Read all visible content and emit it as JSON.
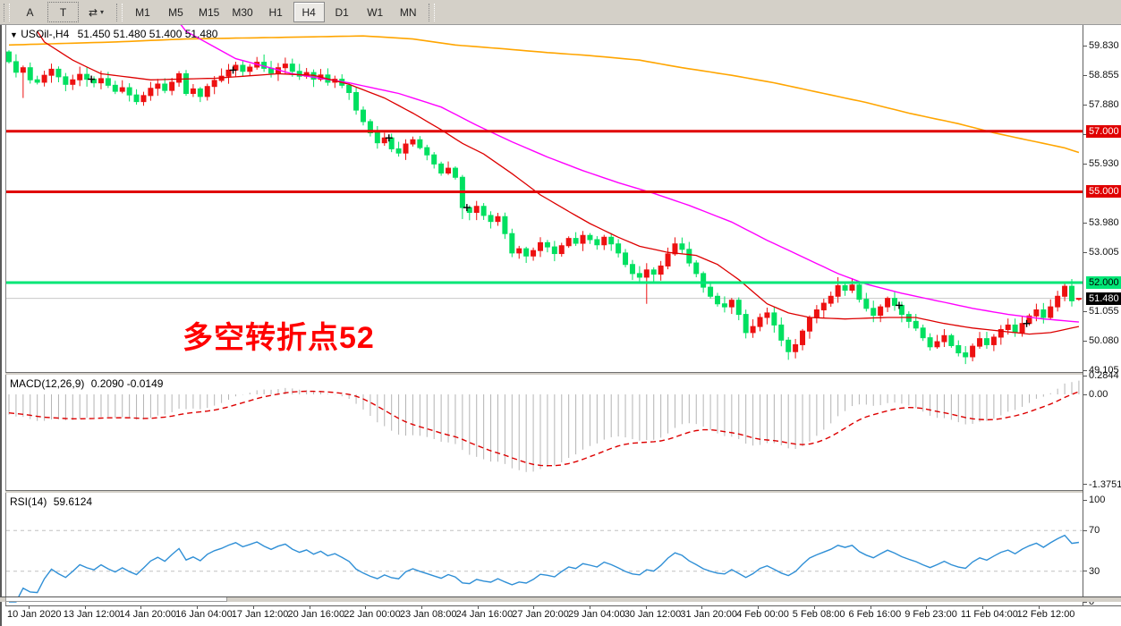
{
  "toolbar": {
    "buttons": [
      {
        "label": "A",
        "name": "annotate-text-button"
      },
      {
        "label": "T",
        "name": "text-label-button",
        "boxed": true
      }
    ],
    "pointer_icon": "⇄",
    "pointer_caret": "▾",
    "timeframes": [
      "M1",
      "M5",
      "M15",
      "M30",
      "H1",
      "H4",
      "D1",
      "W1",
      "MN"
    ],
    "active_timeframe": "H4"
  },
  "chart": {
    "dropdown_glyph": "▼",
    "symbol_title": "USOil-,H4",
    "ohlc_text": "51.450 51.480 51.400 51.480",
    "annotation": {
      "text": "多空转折点52",
      "color": "#FF0000"
    },
    "colors": {
      "up_candle": "#ED1111",
      "down_candle": "#00E060",
      "ma_fast": "#DD0000",
      "ma_mid": "#FF00FF",
      "ma_slow": "#FFA500",
      "level_red": "#E00000",
      "level_green": "#00E676",
      "current_price_line": "#C8C8C8",
      "macd_histogram": "#B4B4B4",
      "macd_signal": "#DD0000",
      "rsi_line": "#2F8FD6"
    },
    "hlines": [
      {
        "price": 57.0,
        "color": "#E00000",
        "width": 3
      },
      {
        "price": 55.0,
        "color": "#E00000",
        "width": 3
      },
      {
        "price": 52.0,
        "color": "#00E676",
        "width": 3
      },
      {
        "price": 51.48,
        "color": "#C8C8C8",
        "width": 1
      }
    ],
    "price_axis": {
      "ticks": [
        59.83,
        58.855,
        57.88,
        56.905,
        55.93,
        53.98,
        53.005,
        51.055,
        50.08,
        49.105
      ],
      "badges": [
        {
          "label": "57.000",
          "price": 57.0,
          "bg": "#E00000",
          "fg": "#FFFFFF"
        },
        {
          "label": "55.000",
          "price": 55.0,
          "bg": "#E00000",
          "fg": "#FFFFFF"
        },
        {
          "label": "52.000",
          "price": 52.0,
          "bg": "#00E676",
          "fg": "#000000"
        },
        {
          "label": "51.480",
          "price": 51.48,
          "bg": "#000000",
          "fg": "#FFFFFF"
        }
      ]
    }
  },
  "chart_data": {
    "type": "candlestick",
    "symbol": "USOil-",
    "timeframe": "H4",
    "title": "USOil-,H4 51.450 51.480 51.400 51.480",
    "x_labels": [
      "10 Jan 2020",
      "13 Jan 12:00",
      "14 Jan 20:00",
      "16 Jan 04:00",
      "17 Jan 12:00",
      "20 Jan 16:00",
      "22 Jan 00:00",
      "23 Jan 08:00",
      "24 Jan 16:00",
      "27 Jan 20:00",
      "29 Jan 04:00",
      "30 Jan 12:00",
      "31 Jan 20:00",
      "4 Feb 00:00",
      "5 Feb 08:00",
      "6 Feb 16:00",
      "9 Feb 23:00",
      "11 Feb 04:00",
      "12 Feb 12:00"
    ],
    "price_range_shown": [
      49.105,
      59.83
    ],
    "closes": [
      59.3,
      58.95,
      59.1,
      58.7,
      58.62,
      58.85,
      59.05,
      58.8,
      58.55,
      58.7,
      58.88,
      58.72,
      58.6,
      58.74,
      58.52,
      58.32,
      58.44,
      58.2,
      57.98,
      58.18,
      58.42,
      58.56,
      58.35,
      58.62,
      58.9,
      58.25,
      58.4,
      58.15,
      58.48,
      58.68,
      58.82,
      59.02,
      59.18,
      58.98,
      59.12,
      59.28,
      59.08,
      58.92,
      59.1,
      59.22,
      58.98,
      58.82,
      58.94,
      58.72,
      58.86,
      58.62,
      58.72,
      58.52,
      58.28,
      57.7,
      57.32,
      56.95,
      56.62,
      56.78,
      56.42,
      56.28,
      56.58,
      56.72,
      56.46,
      56.22,
      55.92,
      55.62,
      55.78,
      55.48,
      54.48,
      54.32,
      54.52,
      54.22,
      54.02,
      54.18,
      53.62,
      52.98,
      53.12,
      52.88,
      53.06,
      53.32,
      53.18,
      52.96,
      53.22,
      53.46,
      53.3,
      53.56,
      53.42,
      53.25,
      53.5,
      53.28,
      52.98,
      52.6,
      52.3,
      52.18,
      52.42,
      52.28,
      52.55,
      52.95,
      53.28,
      53.1,
      52.65,
      52.3,
      51.85,
      51.55,
      51.3,
      51.2,
      51.42,
      50.95,
      50.35,
      50.55,
      50.85,
      51.0,
      50.6,
      50.1,
      49.72,
      49.95,
      50.4,
      50.85,
      51.1,
      51.32,
      51.55,
      51.9,
      51.75,
      51.92,
      51.45,
      51.15,
      50.92,
      51.2,
      51.48,
      51.25,
      50.95,
      50.72,
      50.5,
      50.18,
      49.88,
      50.05,
      50.25,
      49.92,
      49.68,
      49.55,
      49.9,
      50.15,
      49.95,
      50.2,
      50.45,
      50.6,
      50.35,
      50.65,
      50.9,
      51.1,
      50.85,
      51.2,
      51.55,
      51.88,
      51.4,
      51.48
    ],
    "first_open": 59.62,
    "last_candle": {
      "o": 51.45,
      "h": 51.48,
      "l": 51.4,
      "c": 51.48
    },
    "doji_marks": [
      11,
      31,
      53,
      64,
      125,
      143
    ],
    "wick_overrides": {
      "2": {
        "l": 58.1
      },
      "49": {
        "h": 58.45
      },
      "64": {
        "l": 54.1
      },
      "90": {
        "l": 51.3
      },
      "110": {
        "l": 49.45
      },
      "117": {
        "h": 52.18
      },
      "119": {
        "h": 52.15
      },
      "136": {
        "l": 49.4
      }
    },
    "ma_anchors": {
      "slow_orange": [
        [
          0,
          59.85
        ],
        [
          15,
          59.95
        ],
        [
          25,
          60.05
        ],
        [
          38,
          60.1
        ],
        [
          50,
          60.15
        ],
        [
          57,
          60.05
        ],
        [
          63,
          59.85
        ],
        [
          70,
          59.72
        ],
        [
          76,
          59.6
        ],
        [
          82,
          59.5
        ],
        [
          89,
          59.35
        ],
        [
          95,
          59.1
        ],
        [
          102,
          58.85
        ],
        [
          108,
          58.6
        ],
        [
          114,
          58.3
        ],
        [
          121,
          57.95
        ],
        [
          127,
          57.6
        ],
        [
          134,
          57.25
        ],
        [
          139,
          56.95
        ],
        [
          144,
          56.7
        ],
        [
          149,
          56.45
        ],
        [
          151,
          56.3
        ]
      ],
      "mid_magenta": [
        [
          23,
          60.9
        ],
        [
          25,
          60.3
        ],
        [
          32,
          59.4
        ],
        [
          40,
          58.9
        ],
        [
          48,
          58.6
        ],
        [
          55,
          58.25
        ],
        [
          61,
          57.8
        ],
        [
          66,
          57.2
        ],
        [
          71,
          56.65
        ],
        [
          76,
          56.15
        ],
        [
          81,
          55.7
        ],
        [
          86,
          55.3
        ],
        [
          91,
          54.95
        ],
        [
          96,
          54.55
        ],
        [
          102,
          54.0
        ],
        [
          107,
          53.4
        ],
        [
          112,
          52.85
        ],
        [
          117,
          52.3
        ],
        [
          121,
          51.95
        ],
        [
          126,
          51.65
        ],
        [
          131,
          51.4
        ],
        [
          136,
          51.15
        ],
        [
          141,
          50.95
        ],
        [
          146,
          50.8
        ],
        [
          151,
          50.7
        ]
      ],
      "fast_red": [
        [
          4,
          60.3
        ],
        [
          5,
          59.95
        ],
        [
          9,
          59.35
        ],
        [
          13,
          58.9
        ],
        [
          20,
          58.7
        ],
        [
          29,
          58.75
        ],
        [
          38,
          58.9
        ],
        [
          43,
          58.85
        ],
        [
          48,
          58.55
        ],
        [
          53,
          58.1
        ],
        [
          57,
          57.6
        ],
        [
          61,
          57.05
        ],
        [
          64,
          56.6
        ],
        [
          67,
          56.25
        ],
        [
          71,
          55.6
        ],
        [
          75,
          54.9
        ],
        [
          79,
          54.35
        ],
        [
          82,
          53.95
        ],
        [
          86,
          53.5
        ],
        [
          89,
          53.2
        ],
        [
          93,
          53.0
        ],
        [
          97,
          52.9
        ],
        [
          100,
          52.6
        ],
        [
          103,
          52.1
        ],
        [
          105,
          51.7
        ],
        [
          107,
          51.3
        ],
        [
          110,
          51.0
        ],
        [
          113,
          50.85
        ],
        [
          118,
          50.8
        ],
        [
          124,
          50.85
        ],
        [
          128,
          50.85
        ],
        [
          132,
          50.65
        ],
        [
          136,
          50.5
        ],
        [
          140,
          50.4
        ],
        [
          144,
          50.3
        ],
        [
          147,
          50.35
        ],
        [
          151,
          50.55
        ]
      ]
    },
    "indicators": {
      "macd": {
        "label": "MACD(12,26,9)",
        "values": "0.2090 -0.0149",
        "params": [
          12,
          26,
          9
        ],
        "axis_ticks": [
          "0.2844",
          "0.00",
          "-1.3751"
        ],
        "axis_values": [
          0.2844,
          0.0,
          -1.3751
        ]
      },
      "rsi": {
        "label": "RSI(14)",
        "value": "59.6124",
        "period": 14,
        "axis_ticks": [
          "100",
          "70",
          "30",
          "0"
        ],
        "axis_values": [
          100,
          70,
          30,
          0
        ],
        "levels": [
          70,
          30
        ]
      }
    }
  }
}
